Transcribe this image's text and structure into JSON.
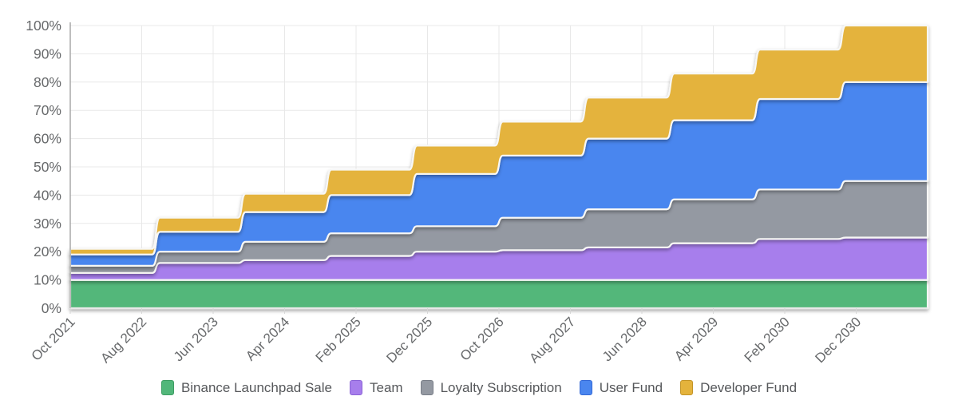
{
  "chart_data": {
    "type": "area",
    "stacking": "percent",
    "title": "",
    "xlabel": "",
    "ylabel": "",
    "ylim": [
      0,
      100
    ],
    "grid": true,
    "legend_position": "bottom",
    "y_tick_labels": [
      "0%",
      "10%",
      "20%",
      "30%",
      "40%",
      "50%",
      "60%",
      "70%",
      "80%",
      "90%",
      "100%"
    ],
    "x_tick_labels": [
      "Oct 2021",
      "Aug 2022",
      "Jun 2023",
      "Apr 2024",
      "Feb 2025",
      "Dec 2025",
      "Oct 2026",
      "Aug 2027",
      "Jun 2028",
      "Apr 2029",
      "Feb 2030",
      "Dec 2030"
    ],
    "x_tick_months": [
      0,
      10,
      20,
      30,
      40,
      50,
      60,
      70,
      80,
      90,
      100,
      110
    ],
    "x_domain_months": [
      0,
      120
    ],
    "step_months": [
      12,
      24,
      36,
      48,
      60,
      72,
      84,
      96,
      108
    ],
    "plateau_totals_percent": [
      21,
      32,
      40.5,
      49,
      57.5,
      66,
      74.5,
      83,
      91.5,
      100
    ],
    "series": [
      {
        "name": "Binance Launchpad Sale",
        "color": "#52b77a",
        "border_color": "#3e9d63",
        "values_percent": [
          10,
          10,
          10,
          10,
          10,
          10,
          10,
          10,
          10,
          10
        ]
      },
      {
        "name": "Team",
        "color": "#a77eec",
        "border_color": "#8b64d6",
        "values_percent": [
          2.5,
          6,
          7,
          8.5,
          10,
          10.5,
          11.5,
          13,
          14.5,
          15
        ]
      },
      {
        "name": "Loyalty Subscription",
        "color": "#9499a2",
        "border_color": "#797e88",
        "values_percent": [
          2.5,
          4,
          6.5,
          8,
          9,
          11.5,
          13.5,
          15.5,
          17.5,
          20
        ]
      },
      {
        "name": "User Fund",
        "color": "#4a86ef",
        "border_color": "#3569d6",
        "values_percent": [
          4,
          7,
          10.5,
          13.5,
          18.5,
          22,
          25,
          28,
          32,
          35
        ]
      },
      {
        "name": "Developer Fund",
        "color": "#e4b33c",
        "border_color": "#c39427",
        "values_percent": [
          2,
          5,
          6.5,
          9,
          10,
          12,
          14.5,
          16.5,
          17.5,
          20
        ]
      }
    ],
    "style": {
      "area_stroke_color": "#f7f7f5",
      "gridline_color": "#e8e8e8",
      "y_axis_line_color": "#9c9c9c",
      "x_axis_line_color": "#dadada",
      "tick_color": "#d6d6d6",
      "axis_label_color": "#67696b"
    }
  }
}
